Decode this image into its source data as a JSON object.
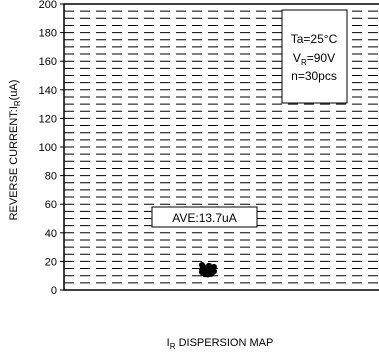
{
  "chart_data": {
    "type": "scatter",
    "title": "",
    "xlabel": "I",
    "xlabel_sub": "R",
    "xlabel_rest": " DISPERSION MAP",
    "ylabel": "REVERSE CURRENT:I",
    "ylabel_sub": "R",
    "ylabel_rest": "(uA)",
    "ylim": [
      0,
      200
    ],
    "yticks": [
      "0",
      "20",
      "40",
      "60",
      "80",
      "100",
      "120",
      "140",
      "160",
      "180",
      "200"
    ],
    "ytick_values": [
      0,
      20,
      40,
      60,
      80,
      100,
      120,
      140,
      160,
      180,
      200
    ],
    "grid": "dashed horizontal",
    "conditions": {
      "line1": "Ta=25°C",
      "line2_prefix": "V",
      "line2_sub": "R",
      "line2_rest": "=90V",
      "line3": "n=30pcs"
    },
    "average_label": "AVE:13.7uA",
    "average_value": 13.7,
    "sample_count": 30,
    "values": [
      17.5,
      17.0,
      16.5,
      16.0,
      15.5,
      15.0,
      14.5,
      14.0,
      13.8,
      13.5,
      13.2,
      13.0,
      12.8,
      12.5,
      12.2,
      12.0,
      11.8,
      11.5,
      11.2,
      11.0,
      14.8,
      13.6,
      12.6,
      15.2,
      16.2,
      10.8,
      14.2,
      12.9,
      13.4,
      15.8
    ],
    "color": "#000000"
  }
}
